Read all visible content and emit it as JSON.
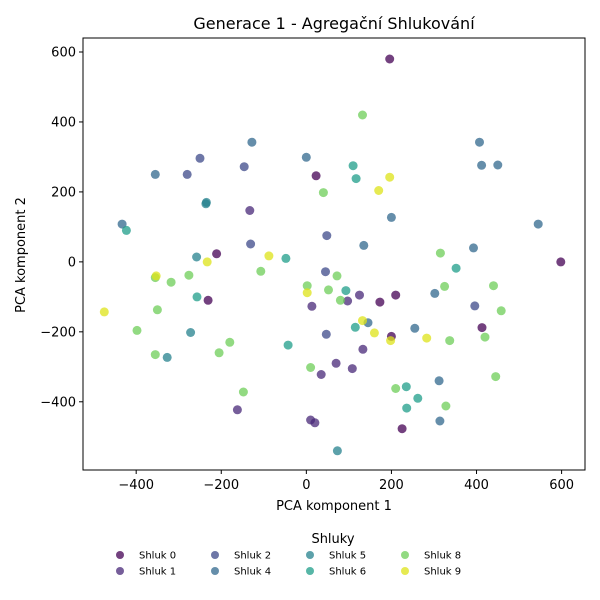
{
  "chart_data": {
    "type": "scatter",
    "title": "Generace 1 - Agregační Shlukování",
    "xlabel": "PCA komponent 1",
    "ylabel": "PCA komponent 2",
    "xlim": [
      -525,
      655
    ],
    "ylim": [
      -595,
      640
    ],
    "xticks": [
      -400,
      -200,
      0,
      200,
      400,
      600
    ],
    "yticks": [
      -400,
      -200,
      0,
      200,
      400,
      600
    ],
    "grid": false,
    "legend_title": "Shluky",
    "legend_position": "bottom",
    "series": [
      {
        "name": "Shluk 0",
        "color": "#440154",
        "points": [
          [
            196,
            580
          ],
          [
            23,
            246
          ],
          [
            -211,
            23
          ],
          [
            598,
            0
          ],
          [
            210,
            -95
          ],
          [
            -231,
            -110
          ],
          [
            173,
            -115
          ],
          [
            413,
            -188
          ],
          [
            200,
            -213
          ],
          [
            225,
            -477
          ]
        ]
      },
      {
        "name": "Shluk 1",
        "color": "#482878",
        "points": [
          [
            -133,
            147
          ],
          [
            125,
            -95
          ],
          [
            13,
            -127
          ],
          [
            97,
            -112
          ],
          [
            133,
            -250
          ],
          [
            70,
            -290
          ],
          [
            35,
            -322
          ],
          [
            108,
            -305
          ],
          [
            -162,
            -423
          ],
          [
            10,
            -452
          ],
          [
            20,
            -460
          ]
        ]
      },
      {
        "name": "Shluk 2",
        "color": "#3e4989",
        "points": [
          [
            -250,
            296
          ],
          [
            -280,
            250
          ],
          [
            -146,
            272
          ],
          [
            48,
            75
          ],
          [
            -131,
            51
          ],
          [
            45,
            -28
          ],
          [
            47,
            -207
          ],
          [
            396,
            -126
          ]
        ]
      },
      {
        "name": "Shluk 4",
        "color": "#31688e",
        "points": [
          [
            -128,
            342
          ],
          [
            0,
            299
          ],
          [
            -355,
            250
          ],
          [
            407,
            342
          ],
          [
            412,
            276
          ],
          [
            450,
            277
          ],
          [
            200,
            127
          ],
          [
            -433,
            108
          ],
          [
            545,
            108
          ],
          [
            393,
            40
          ],
          [
            135,
            47
          ],
          [
            302,
            -90
          ],
          [
            145,
            -174
          ],
          [
            255,
            -190
          ],
          [
            312,
            -340
          ],
          [
            314,
            -455
          ]
        ]
      },
      {
        "name": "Shluk 5",
        "color": "#26828e",
        "points": [
          [
            -235,
            170
          ],
          [
            -236,
            166
          ],
          [
            -258,
            14
          ],
          [
            -272,
            -202
          ],
          [
            -327,
            -273
          ],
          [
            73,
            -540
          ]
        ]
      },
      {
        "name": "Shluk 6",
        "color": "#1f9e89",
        "points": [
          [
            110,
            275
          ],
          [
            117,
            238
          ],
          [
            -423,
            90
          ],
          [
            -48,
            10
          ],
          [
            352,
            -18
          ],
          [
            93,
            -82
          ],
          [
            -257,
            -100
          ],
          [
            115,
            -187
          ],
          [
            -43,
            -238
          ],
          [
            235,
            -357
          ],
          [
            262,
            -390
          ],
          [
            236,
            -418
          ]
        ]
      },
      {
        "name": "Shluk 8",
        "color": "#6ece58",
        "points": [
          [
            132,
            420
          ],
          [
            40,
            198
          ],
          [
            315,
            25
          ],
          [
            -107,
            -27
          ],
          [
            -276,
            -38
          ],
          [
            72,
            -40
          ],
          [
            -355,
            -45
          ],
          [
            2,
            -68
          ],
          [
            -318,
            -58
          ],
          [
            52,
            -80
          ],
          [
            325,
            -70
          ],
          [
            440,
            -68
          ],
          [
            80,
            -110
          ],
          [
            -350,
            -137
          ],
          [
            458,
            -140
          ],
          [
            -398,
            -196
          ],
          [
            -180,
            -230
          ],
          [
            337,
            -225
          ],
          [
            420,
            -215
          ],
          [
            -205,
            -260
          ],
          [
            -355,
            -265
          ],
          [
            10,
            -302
          ],
          [
            -148,
            -372
          ],
          [
            210,
            -362
          ],
          [
            445,
            -328
          ],
          [
            328,
            -412
          ]
        ]
      },
      {
        "name": "Shluk 9",
        "color": "#dde318",
        "points": [
          [
            196,
            242
          ],
          [
            170,
            204
          ],
          [
            -88,
            17
          ],
          [
            -233,
            0
          ],
          [
            -353,
            -40
          ],
          [
            2,
            -88
          ],
          [
            132,
            -168
          ],
          [
            160,
            -203
          ],
          [
            198,
            -225
          ],
          [
            283,
            -218
          ],
          [
            -475,
            -143
          ]
        ]
      }
    ]
  }
}
